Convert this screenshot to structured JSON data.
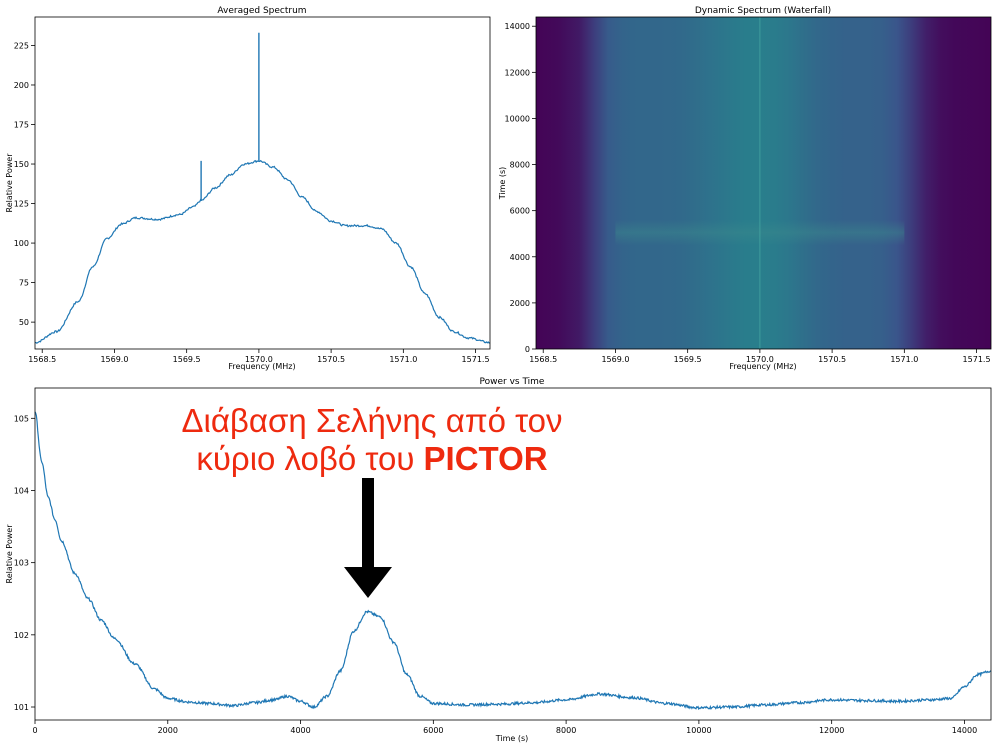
{
  "chart_data": [
    {
      "type": "line",
      "title": "Averaged Spectrum",
      "xlabel": "Frequency (MHz)",
      "ylabel": "Relative Power",
      "xlim": [
        1568.45,
        1571.6
      ],
      "ylim": [
        33,
        243
      ],
      "xticks": [
        1568.5,
        1569.0,
        1569.5,
        1570.0,
        1570.5,
        1571.0,
        1571.5
      ],
      "yticks": [
        50,
        75,
        100,
        125,
        150,
        175,
        200,
        225
      ],
      "color": "#1f77b4",
      "series": [
        {
          "x": [
            1568.45,
            1568.6,
            1568.75,
            1568.85,
            1568.95,
            1569.05,
            1569.15,
            1569.3,
            1569.45,
            1569.55,
            1569.6,
            1569.7,
            1569.8,
            1569.9,
            1570.0,
            1570.1,
            1570.2,
            1570.3,
            1570.4,
            1570.5,
            1570.6,
            1570.75,
            1570.85,
            1570.95,
            1571.05,
            1571.15,
            1571.25,
            1571.35,
            1571.45,
            1571.6
          ],
          "y": [
            37,
            44,
            63,
            85,
            103,
            112,
            116,
            115,
            118,
            123,
            127,
            135,
            143,
            150,
            152,
            148,
            140,
            129,
            120,
            114,
            111,
            111,
            109,
            100,
            85,
            68,
            53,
            44,
            40,
            37
          ]
        }
      ],
      "spikes": [
        {
          "x": 1569.6,
          "y": 152
        },
        {
          "x": 1570.0,
          "y": 233
        }
      ]
    },
    {
      "type": "heatmap",
      "title": "Dynamic Spectrum (Waterfall)",
      "xlabel": "Frequency (MHz)",
      "ylabel": "Time (s)",
      "xlim": [
        1568.45,
        1571.6
      ],
      "ylim": [
        0,
        14400
      ],
      "xticks": [
        1568.5,
        1569.0,
        1569.5,
        1570.0,
        1570.5,
        1571.0,
        1571.5
      ],
      "yticks": [
        0,
        2000,
        4000,
        6000,
        8000,
        10000,
        12000,
        14000
      ],
      "colormap": "viridis",
      "profile_x": [
        1568.45,
        1568.6,
        1568.75,
        1568.85,
        1568.95,
        1569.05,
        1569.15,
        1569.3,
        1569.45,
        1569.55,
        1569.7,
        1569.8,
        1569.9,
        1570.0,
        1570.1,
        1570.2,
        1570.3,
        1570.4,
        1570.5,
        1570.6,
        1570.75,
        1570.85,
        1570.95,
        1571.05,
        1571.15,
        1571.25,
        1571.35,
        1571.6
      ],
      "profile_level": [
        0.02,
        0.05,
        0.15,
        0.35,
        0.55,
        0.62,
        0.64,
        0.64,
        0.66,
        0.69,
        0.74,
        0.78,
        0.81,
        0.82,
        0.8,
        0.76,
        0.7,
        0.65,
        0.62,
        0.6,
        0.6,
        0.58,
        0.5,
        0.35,
        0.18,
        0.08,
        0.04,
        0.02
      ],
      "bright_band_time": [
        4500,
        5600
      ]
    },
    {
      "type": "line",
      "title": "Power vs Time",
      "xlabel": "Time (s)",
      "ylabel": "Relative Power",
      "xlim": [
        0,
        14400
      ],
      "ylim": [
        100.82,
        105.42
      ],
      "xticks": [
        0,
        2000,
        4000,
        6000,
        8000,
        10000,
        12000,
        14000
      ],
      "yticks": [
        101,
        102,
        103,
        104,
        105
      ],
      "color": "#1f77b4",
      "series": [
        {
          "x": [
            0,
            100,
            200,
            300,
            400,
            600,
            800,
            1000,
            1200,
            1500,
            1800,
            2000,
            2300,
            2600,
            3000,
            3300,
            3600,
            3800,
            4000,
            4200,
            4400,
            4600,
            4800,
            5000,
            5200,
            5400,
            5600,
            5800,
            6000,
            6500,
            7000,
            7500,
            8000,
            8500,
            9000,
            9500,
            10000,
            10500,
            11000,
            11500,
            12000,
            12500,
            13000,
            13500,
            13800,
            14000,
            14200,
            14400
          ],
          "y": [
            105.1,
            104.4,
            103.9,
            103.6,
            103.3,
            102.85,
            102.5,
            102.2,
            101.95,
            101.6,
            101.25,
            101.12,
            101.07,
            101.05,
            101.02,
            101.06,
            101.1,
            101.15,
            101.08,
            101.0,
            101.15,
            101.5,
            102.05,
            102.32,
            102.25,
            101.9,
            101.45,
            101.15,
            101.05,
            101.03,
            101.04,
            101.06,
            101.1,
            101.18,
            101.13,
            101.05,
            100.99,
            101.0,
            101.03,
            101.06,
            101.1,
            101.09,
            101.08,
            101.1,
            101.12,
            101.28,
            101.45,
            101.5
          ]
        }
      ]
    }
  ],
  "annotation": {
    "line1": "Διάβαση Σελήνης από τον",
    "line2_prefix": "κύριο λοβό του ",
    "line2_bold": "PICTOR"
  }
}
